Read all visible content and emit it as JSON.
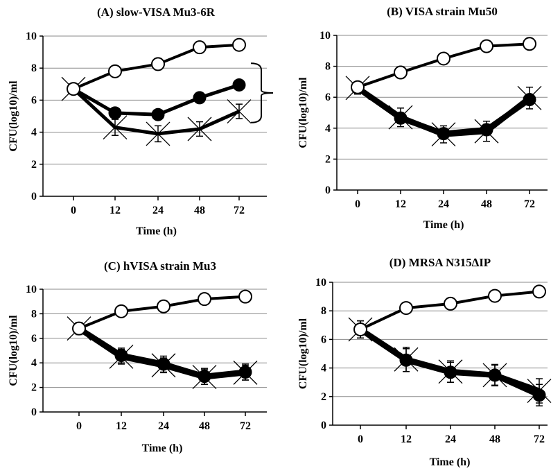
{
  "chart_data": [
    {
      "id": "A",
      "type": "line",
      "title": "(A)  slow-VISA Mu3-6R",
      "xlabel": "Time (h)",
      "ylabel": "CFU(log10)/ml",
      "categories": [
        "0",
        "12",
        "24",
        "48",
        "72"
      ],
      "ylim": [
        0,
        10
      ],
      "yticks": [
        "0",
        "2",
        "4",
        "6",
        "8",
        "10"
      ],
      "grid": true,
      "bracket": true,
      "series": [
        {
          "marker": "open-circle",
          "values": [
            6.7,
            7.8,
            8.25,
            9.3,
            9.45
          ],
          "errors": [
            0.3,
            0.35,
            0.35,
            0.35,
            0.35
          ]
        },
        {
          "marker": "filled-circle",
          "values": [
            6.7,
            5.2,
            5.1,
            6.15,
            6.95
          ],
          "errors": [
            0.25,
            0.25,
            0.25,
            0.25,
            0.25
          ]
        },
        {
          "marker": "cross",
          "values": [
            6.7,
            4.3,
            3.9,
            4.2,
            5.3
          ],
          "errors": [
            0.3,
            0.5,
            0.5,
            0.45,
            0.45
          ]
        }
      ]
    },
    {
      "id": "B",
      "type": "line",
      "title": "(B) VISA strain Mu50",
      "xlabel": "Time (h)",
      "ylabel": "CFU(log10)/ml",
      "categories": [
        "0",
        "12",
        "24",
        "48",
        "72"
      ],
      "ylim": [
        0,
        10
      ],
      "yticks": [
        "0",
        "2",
        "4",
        "6",
        "8",
        "10"
      ],
      "grid": true,
      "bracket": false,
      "series": [
        {
          "marker": "open-circle",
          "values": [
            6.65,
            7.6,
            8.5,
            9.3,
            9.45
          ],
          "errors": [
            0.35,
            0.35,
            0.35,
            0.35,
            0.35
          ]
        },
        {
          "marker": "filled-circle",
          "values": [
            6.6,
            4.65,
            3.65,
            3.9,
            5.85
          ],
          "errors": [
            0.35,
            0.35,
            0.35,
            0.35,
            0.35
          ]
        },
        {
          "marker": "cross",
          "values": [
            6.6,
            4.7,
            3.6,
            3.8,
            5.95
          ],
          "errors": [
            0.4,
            0.6,
            0.55,
            0.65,
            0.7
          ]
        }
      ]
    },
    {
      "id": "C",
      "type": "line",
      "title": "(C) hVISA  strain Mu3",
      "xlabel": "Time (h)",
      "ylabel": "CFU(log10)/ml",
      "categories": [
        "0",
        "12",
        "24",
        "48",
        "72"
      ],
      "ylim": [
        0,
        10
      ],
      "yticks": [
        "0",
        "2",
        "4",
        "6",
        "8",
        "10"
      ],
      "grid": true,
      "bracket": false,
      "series": [
        {
          "marker": "open-circle",
          "values": [
            6.8,
            8.2,
            8.6,
            9.2,
            9.4
          ],
          "errors": [
            0.3,
            0.2,
            0.2,
            0.2,
            0.2
          ]
        },
        {
          "marker": "filled-circle",
          "values": [
            6.8,
            4.6,
            3.9,
            2.9,
            3.25
          ],
          "errors": [
            0.5,
            0.6,
            0.65,
            0.65,
            0.65
          ]
        },
        {
          "marker": "cross",
          "values": [
            6.8,
            4.5,
            3.8,
            2.85,
            3.2
          ],
          "errors": [
            0.45,
            0.6,
            0.6,
            0.6,
            0.6
          ]
        }
      ]
    },
    {
      "id": "D",
      "type": "line",
      "title": "(D) MRSA N315∆IP",
      "xlabel": "Time (h)",
      "ylabel": "CFU(log10)/ml",
      "categories": [
        "0",
        "12",
        "24",
        "48",
        "72"
      ],
      "ylim": [
        0,
        10
      ],
      "yticks": [
        "0",
        "2",
        "4",
        "6",
        "8",
        "10"
      ],
      "grid": true,
      "bracket": false,
      "series": [
        {
          "marker": "open-circle",
          "values": [
            6.7,
            8.2,
            8.5,
            9.05,
            9.35
          ],
          "errors": [
            0.3,
            0.2,
            0.2,
            0.2,
            0.2
          ]
        },
        {
          "marker": "filled-circle",
          "values": [
            6.7,
            4.55,
            3.7,
            3.5,
            2.1
          ],
          "errors": [
            0.6,
            0.8,
            0.7,
            0.7,
            0.75
          ]
        },
        {
          "marker": "cross",
          "values": [
            6.7,
            4.6,
            3.75,
            3.5,
            2.4
          ],
          "errors": [
            0.6,
            0.85,
            0.75,
            0.75,
            0.85
          ]
        }
      ]
    }
  ]
}
